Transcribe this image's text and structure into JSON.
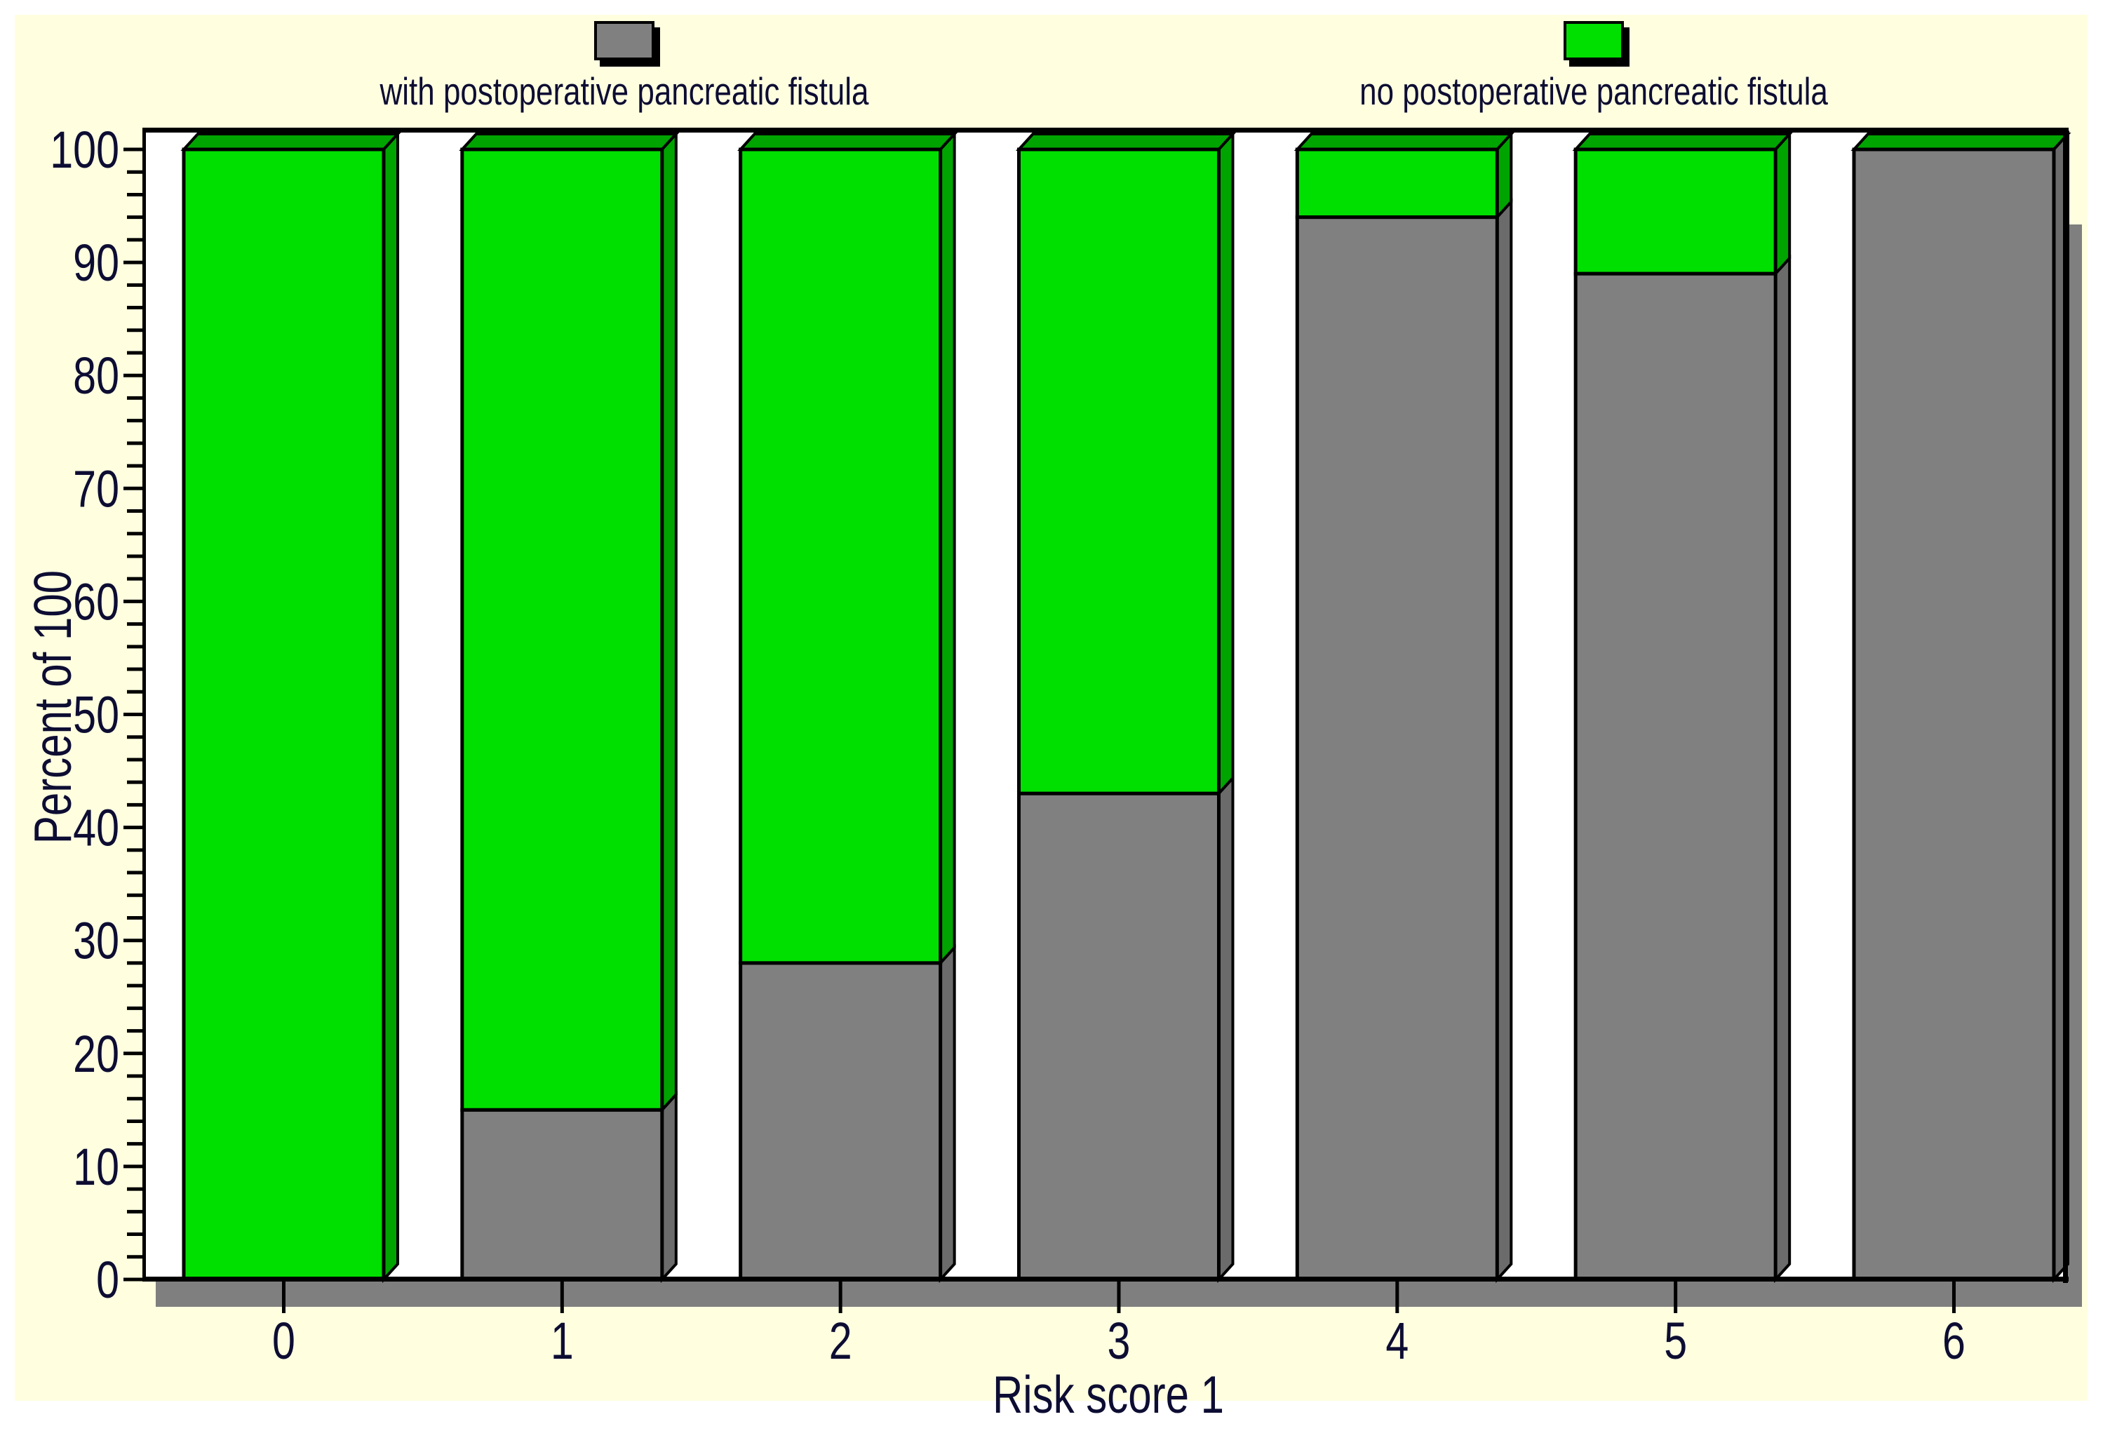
{
  "chart_data": {
    "type": "bar",
    "variant": "3d-stacked-percent-column",
    "stacked": true,
    "categories": [
      "0",
      "1",
      "2",
      "3",
      "4",
      "5",
      "6"
    ],
    "series": [
      {
        "name": "with postoperative pancreatic fistula",
        "color": "#808080",
        "side_color": "#6B6B6B",
        "values": [
          0,
          15,
          28,
          43,
          94,
          89,
          100
        ]
      },
      {
        "name": "no postoperative pancreatic fistula",
        "color": "#00E000",
        "side_color": "#00A400",
        "top_color": "#00A400",
        "values": [
          100,
          85,
          72,
          57,
          6,
          11,
          0
        ]
      }
    ],
    "stack_order_bottom_to_top": [
      "with postoperative pancreatic fistula",
      "no postoperative pancreatic fistula"
    ],
    "xlabel": "Risk score 1",
    "ylabel": "Percent of 100",
    "ylim": [
      0,
      100
    ],
    "y_major_tick_step": 10,
    "y_minor_tick_step": 2,
    "y_tick_labels": [
      "0",
      "10",
      "20",
      "30",
      "40",
      "50",
      "60",
      "70",
      "80",
      "90",
      "100"
    ],
    "legend_position": "top",
    "grid": false,
    "background_color": "#FFFFE0",
    "plot_background": "#FFFFFF",
    "axis_color": "#000000",
    "shadow_color": "#7F7F7F",
    "text_color": "#0D0D33"
  }
}
